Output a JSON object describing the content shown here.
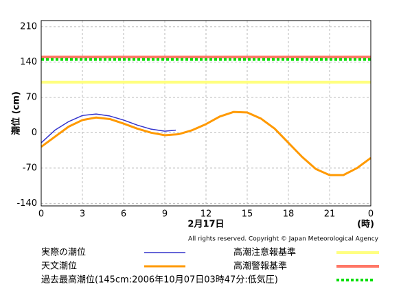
{
  "chart_data": {
    "type": "line",
    "y_label": "潮位 (cm)",
    "x_label": "2月17日",
    "x_unit": "(時)",
    "copyright": "All rights reserved. Copyright © Japan Meteorological Agency",
    "xlim": [
      0,
      24
    ],
    "xticks": [
      0,
      3,
      6,
      9,
      12,
      15,
      18,
      21,
      {
        "value": 24,
        "label": "0"
      }
    ],
    "ylim": [
      -145,
      222
    ],
    "yticks": [
      -140,
      -70,
      0,
      70,
      140,
      210
    ],
    "grid": true,
    "series": [
      {
        "name": "実際の潮位",
        "color": "#3333cc",
        "width": 1.5,
        "x": [
          0,
          1,
          2,
          3,
          4,
          5,
          6,
          7,
          8,
          9,
          9.8
        ],
        "values": [
          -20,
          5,
          22,
          34,
          37,
          33,
          25,
          15,
          7,
          3,
          5
        ]
      },
      {
        "name": "天文潮位",
        "color": "#ff9900",
        "width": 3,
        "x": [
          0,
          1,
          2,
          3,
          4,
          5,
          6,
          7,
          8,
          9,
          10,
          11,
          12,
          13,
          14,
          15,
          16,
          17,
          18,
          19,
          20,
          21,
          22,
          23,
          24
        ],
        "values": [
          -28,
          -8,
          12,
          25,
          30,
          27,
          18,
          8,
          0,
          -5,
          -3,
          5,
          17,
          32,
          41,
          40,
          28,
          8,
          -20,
          -48,
          -72,
          -84,
          -84,
          -70,
          -50
        ]
      }
    ],
    "thresholds": [
      {
        "name": "高潮注意報基準",
        "color": "#ffff80",
        "value": 100,
        "dashed": false
      },
      {
        "name": "高潮警報基準",
        "color": "#ff7766",
        "value": 150,
        "dashed": false
      },
      {
        "name": "過去最高潮位(145cm:2006年10月07日03時47分:低気圧)",
        "color": "#00dd00",
        "value": 145,
        "dashed": true
      }
    ]
  }
}
